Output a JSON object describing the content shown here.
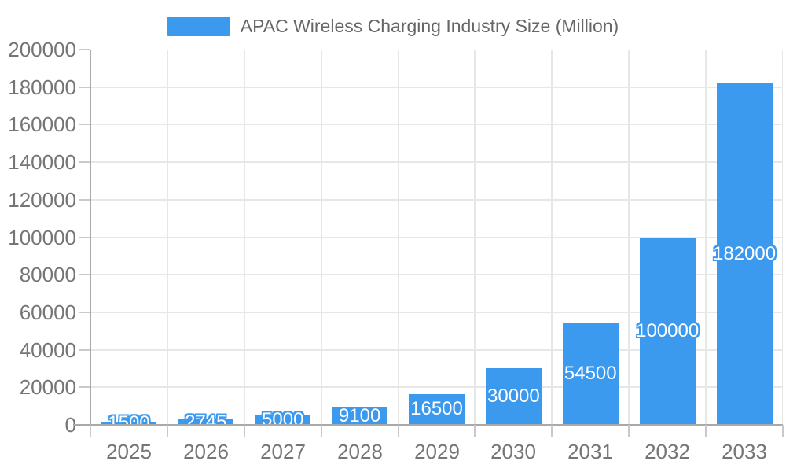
{
  "chart_data": {
    "type": "bar",
    "title": "APAC Wireless Charging Industry Size (Million)",
    "legend_label": "APAC Wireless Charging Industry Size (Million)",
    "legend_position": "top",
    "categories": [
      "2025",
      "2026",
      "2027",
      "2028",
      "2029",
      "2030",
      "2031",
      "2032",
      "2033"
    ],
    "values": [
      1500,
      2745,
      5000,
      9100,
      16500,
      30000,
      54500,
      100000,
      182000
    ],
    "value_labels": [
      "1500",
      "2745",
      "5000",
      "9100",
      "16500",
      "30000",
      "54500",
      "100000",
      "182000"
    ],
    "xlabel": "",
    "ylabel": "",
    "ylim": [
      0,
      200000
    ],
    "ytick_step": 20000,
    "ytick_labels": [
      "0",
      "20000",
      "40000",
      "60000",
      "80000",
      "100000",
      "120000",
      "140000",
      "160000",
      "180000",
      "200000"
    ],
    "grid": true,
    "colors": {
      "bar": "#3B99EE",
      "bar_label_text": "#FFFFFF",
      "axis_line": "#A9A9A9",
      "tick": "#C9C9C9",
      "gridline": "#E7E7E7",
      "axis_label_text": "#757575",
      "legend_text": "#666666"
    }
  }
}
